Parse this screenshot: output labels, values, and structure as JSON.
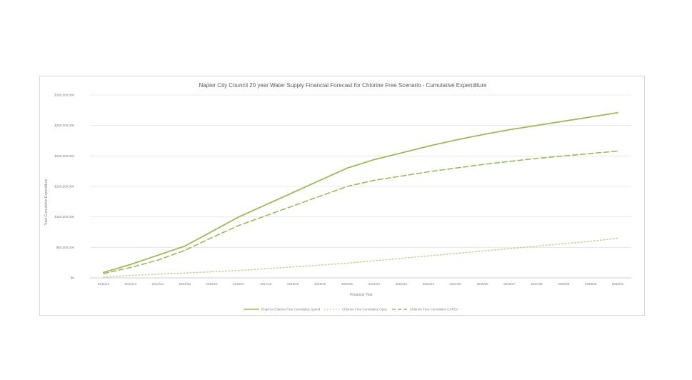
{
  "chart_data": {
    "type": "line",
    "title": "Napier City Council 20 year Water Supply Financial Forecast for Chlorine Free Scenario - Cumulative Expenditure",
    "xlabel": "Financial Year",
    "ylabel": "Total Cumulative Expenditure",
    "ylim": [
      0,
      300000000
    ],
    "yticks": [
      "$0",
      "$50,000,000",
      "$100,000,000",
      "$150,000,000",
      "$200,000,000",
      "$250,000,000",
      "$300,000,000"
    ],
    "categories": [
      "2011/12",
      "2012/13",
      "2013/14",
      "2014/15",
      "2015/16",
      "2016/17",
      "2017/18",
      "2018/19",
      "2019/20",
      "2020/21",
      "2021/22",
      "2022/23",
      "2023/24",
      "2024/25",
      "2025/26",
      "2026/27",
      "2027/28",
      "2028/29",
      "2029/30",
      "2030/31"
    ],
    "grid": true,
    "legend_position": "bottom",
    "series": [
      {
        "name": "Road to Chlorine Free Cumulative Spend",
        "color": "#9bbb59",
        "dash": "solid",
        "values": [
          9000000,
          22000000,
          37000000,
          52000000,
          76000000,
          100000000,
          120000000,
          140000000,
          160000000,
          180000000,
          194000000,
          205000000,
          216000000,
          226000000,
          235000000,
          243000000,
          250000000,
          257000000,
          264000000,
          271000000
        ]
      },
      {
        "name": "Chlorine Free Cumulative Opex",
        "color": "#c3d69b",
        "dash": "dotted",
        "values": [
          1000000,
          4000000,
          6000000,
          8000000,
          10000000,
          12000000,
          15000000,
          18000000,
          21000000,
          24000000,
          28000000,
          32000000,
          36000000,
          40000000,
          44000000,
          48000000,
          52000000,
          56000000,
          60000000,
          65000000
        ]
      },
      {
        "name": "Chlorine Free Cumulative CAPEX",
        "color": "#9bbb59",
        "dash": "dashed",
        "values": [
          7000000,
          17000000,
          29000000,
          45000000,
          66000000,
          86000000,
          102000000,
          118000000,
          134000000,
          150000000,
          160000000,
          167000000,
          174000000,
          180000000,
          186000000,
          191000000,
          196000000,
          200000000,
          204000000,
          208000000
        ]
      }
    ]
  }
}
